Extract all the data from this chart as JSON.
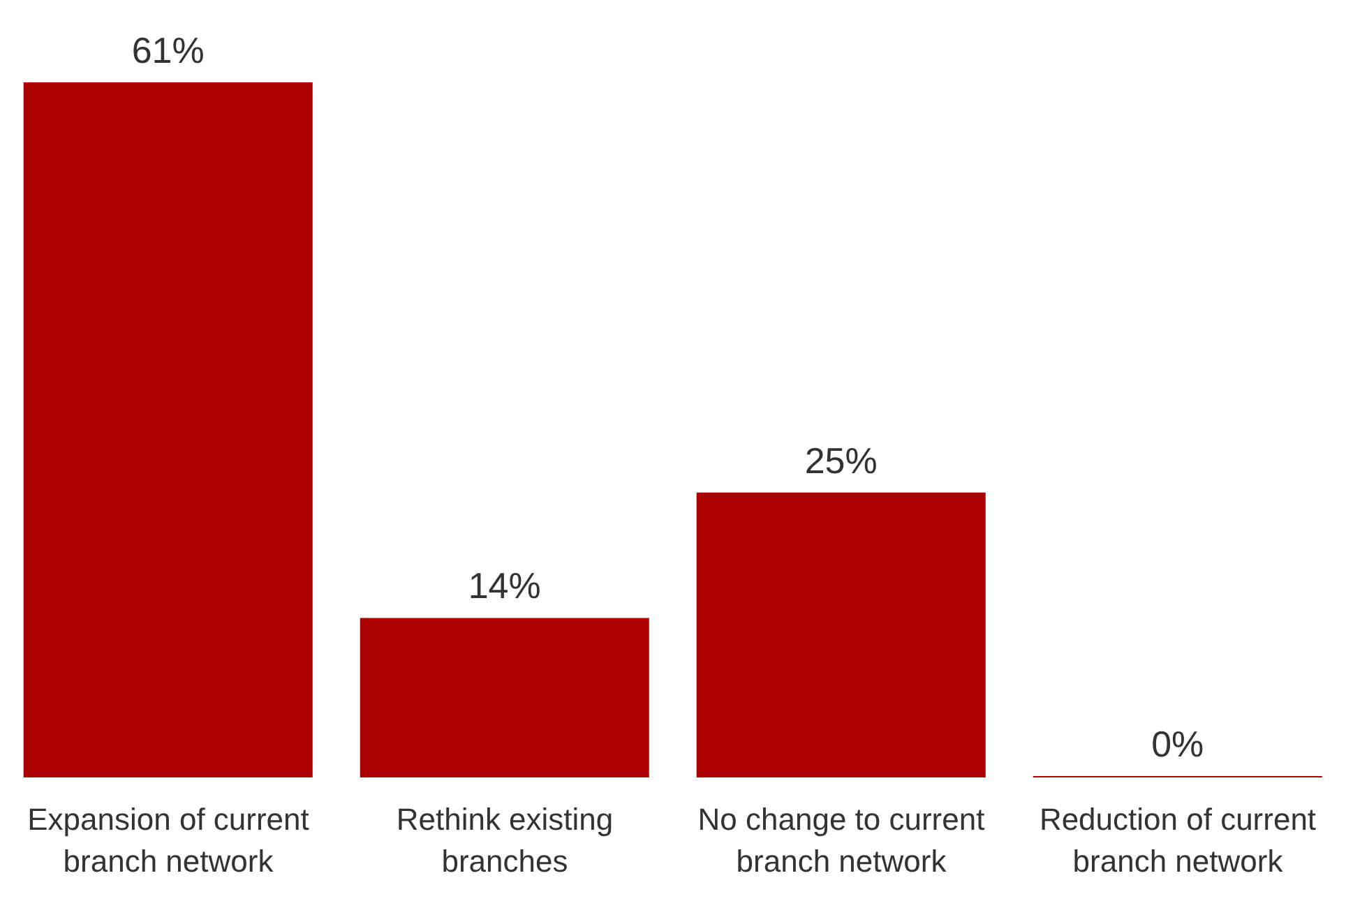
{
  "chart_data": {
    "type": "bar",
    "categories": [
      "Expansion of current branch network",
      "Rethink existing branches",
      "No change to current branch network",
      "Reduction of current branch network"
    ],
    "values": [
      61,
      14,
      25,
      0
    ],
    "value_labels": [
      "61%",
      "14%",
      "25%",
      "0%"
    ],
    "color": "#aa0000",
    "grid": false,
    "legend": false
  }
}
